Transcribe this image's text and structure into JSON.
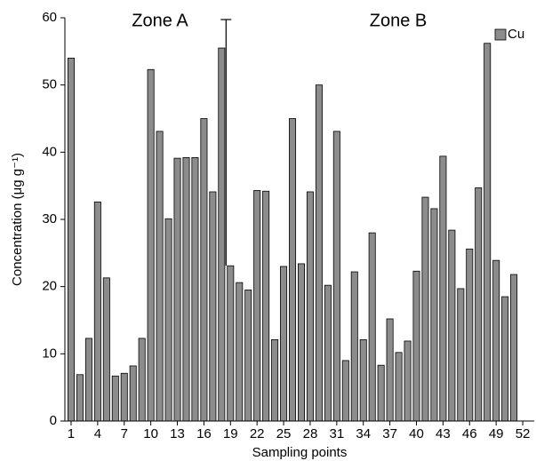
{
  "chart_data": {
    "type": "bar",
    "xlabel": "Sampling points",
    "ylabel": "Concentration (μg g⁻¹)",
    "annotations": [
      "Zone A",
      "Zone B"
    ],
    "zone_boundary": 18.5,
    "x": [
      1,
      2,
      3,
      4,
      5,
      6,
      7,
      8,
      9,
      10,
      11,
      12,
      13,
      14,
      15,
      16,
      17,
      18,
      19,
      20,
      21,
      22,
      23,
      24,
      25,
      26,
      27,
      28,
      29,
      30,
      31,
      32,
      33,
      34,
      35,
      36,
      37,
      38,
      39,
      40,
      41,
      42,
      43,
      44,
      45,
      46,
      47,
      48,
      49,
      50,
      51
    ],
    "series": [
      {
        "name": "Cu",
        "color": "#8c8c8c",
        "values": [
          54.0,
          6.9,
          12.3,
          32.6,
          21.3,
          6.7,
          7.1,
          8.2,
          12.3,
          52.3,
          43.1,
          30.1,
          39.1,
          39.2,
          39.2,
          45.0,
          34.1,
          55.5,
          23.1,
          20.6,
          19.5,
          34.3,
          34.2,
          12.1,
          23.0,
          45.0,
          23.4,
          34.1,
          50.0,
          20.2,
          43.1,
          9.0,
          22.2,
          12.1,
          28.0,
          8.3,
          15.2,
          10.2,
          11.9,
          22.3,
          33.3,
          31.6,
          39.4,
          28.4,
          19.7,
          25.6,
          34.7,
          56.2,
          23.9,
          18.5,
          21.8
        ]
      }
    ],
    "xlim": [
      0.3,
      53.3
    ],
    "xticks": [
      1,
      4,
      7,
      10,
      13,
      16,
      19,
      22,
      25,
      28,
      31,
      34,
      37,
      40,
      43,
      46,
      49,
      52
    ],
    "ylim": [
      0,
      60
    ],
    "yticks": [
      0,
      10,
      20,
      30,
      40,
      50,
      60
    ],
    "legend": "top-right"
  }
}
